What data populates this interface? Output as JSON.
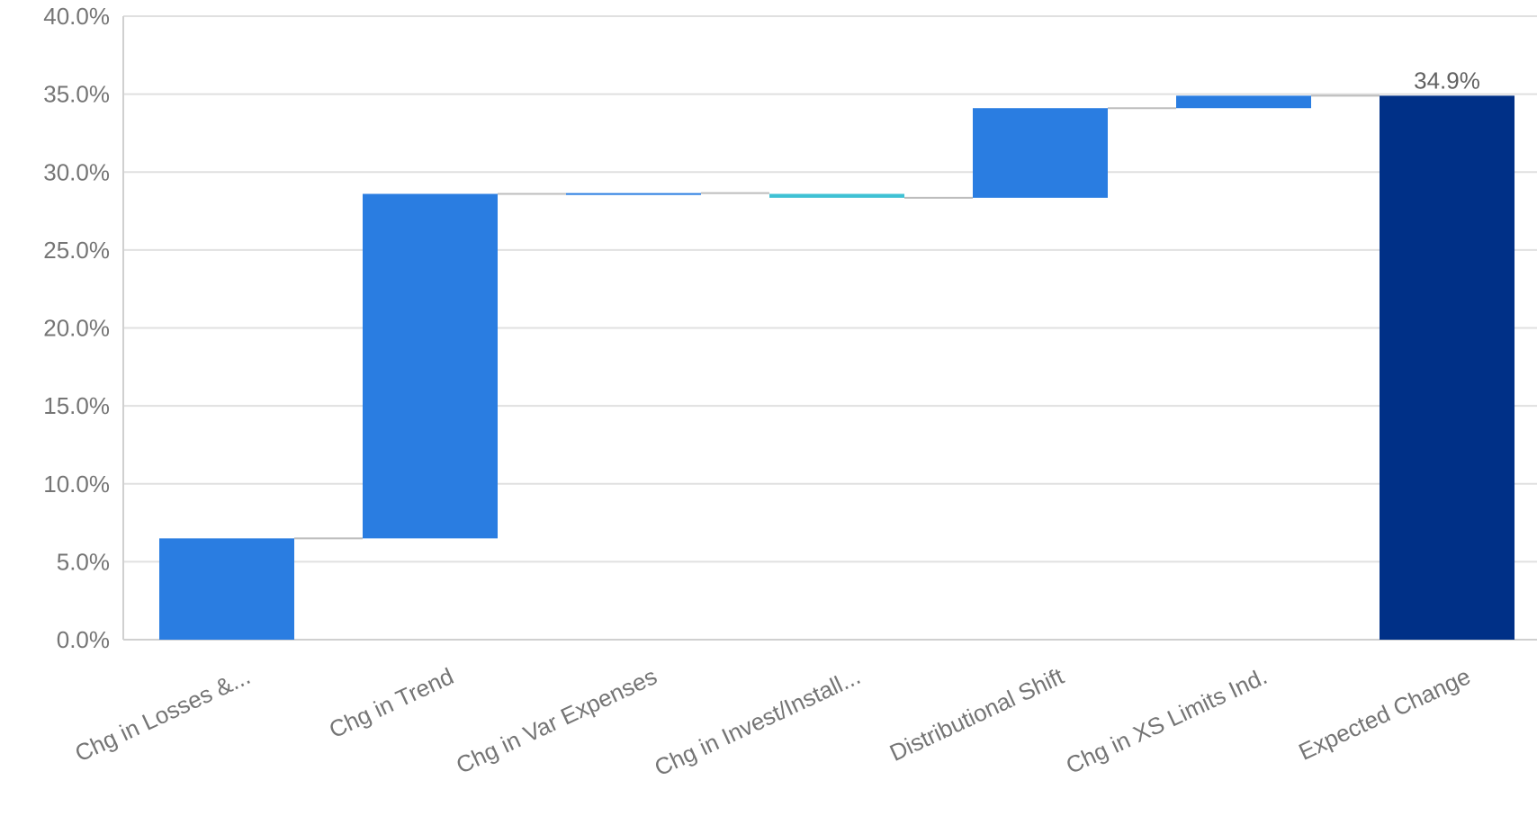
{
  "chart_data": {
    "type": "bar",
    "subtype": "waterfall",
    "title": "",
    "xlabel": "",
    "ylabel": "",
    "ylim": [
      0,
      40
    ],
    "y_tick_labels": [
      "0.0%",
      "5.0%",
      "10.0%",
      "15.0%",
      "20.0%",
      "25.0%",
      "30.0%",
      "35.0%",
      "40.0%"
    ],
    "y_tick_values": [
      0,
      5,
      10,
      15,
      20,
      25,
      30,
      35,
      40
    ],
    "grid": "horizontal",
    "categories": [
      "Chg in Losses &...",
      "Chg in Trend",
      "Chg in Var Expenses",
      "Chg in Invest/Install...",
      "Distributional Shift",
      "Chg in XS Limits Ind.",
      "Expected Change"
    ],
    "bars": [
      {
        "start": 0,
        "end": 6.5,
        "kind": "increase"
      },
      {
        "start": 6.5,
        "end": 28.6,
        "kind": "increase"
      },
      {
        "start": 28.6,
        "end": 28.65,
        "kind": "increase"
      },
      {
        "start": 28.6,
        "end": 28.35,
        "kind": "decrease"
      },
      {
        "start": 28.35,
        "end": 34.1,
        "kind": "increase"
      },
      {
        "start": 34.1,
        "end": 34.9,
        "kind": "increase"
      },
      {
        "start": 0,
        "end": 34.9,
        "kind": "total"
      }
    ],
    "data_labels": [
      {
        "index": 6,
        "text": "34.9%"
      }
    ],
    "colors": {
      "increase": "#2A7DE1",
      "decrease": "#3FC1D4",
      "total": "#003087",
      "connector": "#BDBDBD",
      "grid": "#E0E0E0"
    }
  }
}
